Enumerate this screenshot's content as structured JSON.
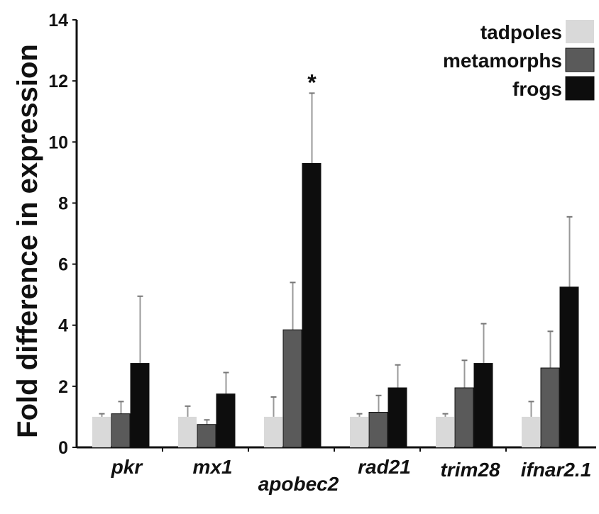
{
  "chart_data": {
    "type": "bar",
    "title": "",
    "xlabel": "",
    "ylabel": "Fold difference in expression",
    "ylim": [
      0,
      14
    ],
    "yticks": [
      "0",
      "2",
      "4",
      "6",
      "8",
      "10",
      "12",
      "14"
    ],
    "categories": [
      "pkr",
      "mx1",
      "apobec2",
      "rad21",
      "trim28",
      "ifnar2.1"
    ],
    "series": [
      {
        "name": "tadpoles",
        "color": "#d9d9d9",
        "values": [
          1.0,
          1.0,
          1.0,
          1.0,
          1.0,
          1.0
        ],
        "error_upper": [
          1.1,
          1.35,
          1.65,
          1.1,
          1.1,
          1.5
        ]
      },
      {
        "name": "metamorphs",
        "color": "#5a5a5a",
        "values": [
          1.1,
          0.75,
          3.85,
          1.15,
          1.95,
          2.6
        ],
        "error_upper": [
          1.5,
          0.9,
          5.4,
          1.7,
          2.85,
          3.8
        ]
      },
      {
        "name": "frogs",
        "color": "#0d0d0d",
        "values": [
          2.75,
          1.75,
          9.3,
          1.95,
          2.75,
          5.25
        ],
        "error_upper": [
          4.95,
          2.45,
          11.6,
          2.7,
          4.05,
          7.55
        ]
      }
    ],
    "annotations": [
      {
        "category": "apobec2",
        "series": "frogs",
        "text": "*"
      }
    ],
    "legend_position": "top-right",
    "grid": false
  }
}
